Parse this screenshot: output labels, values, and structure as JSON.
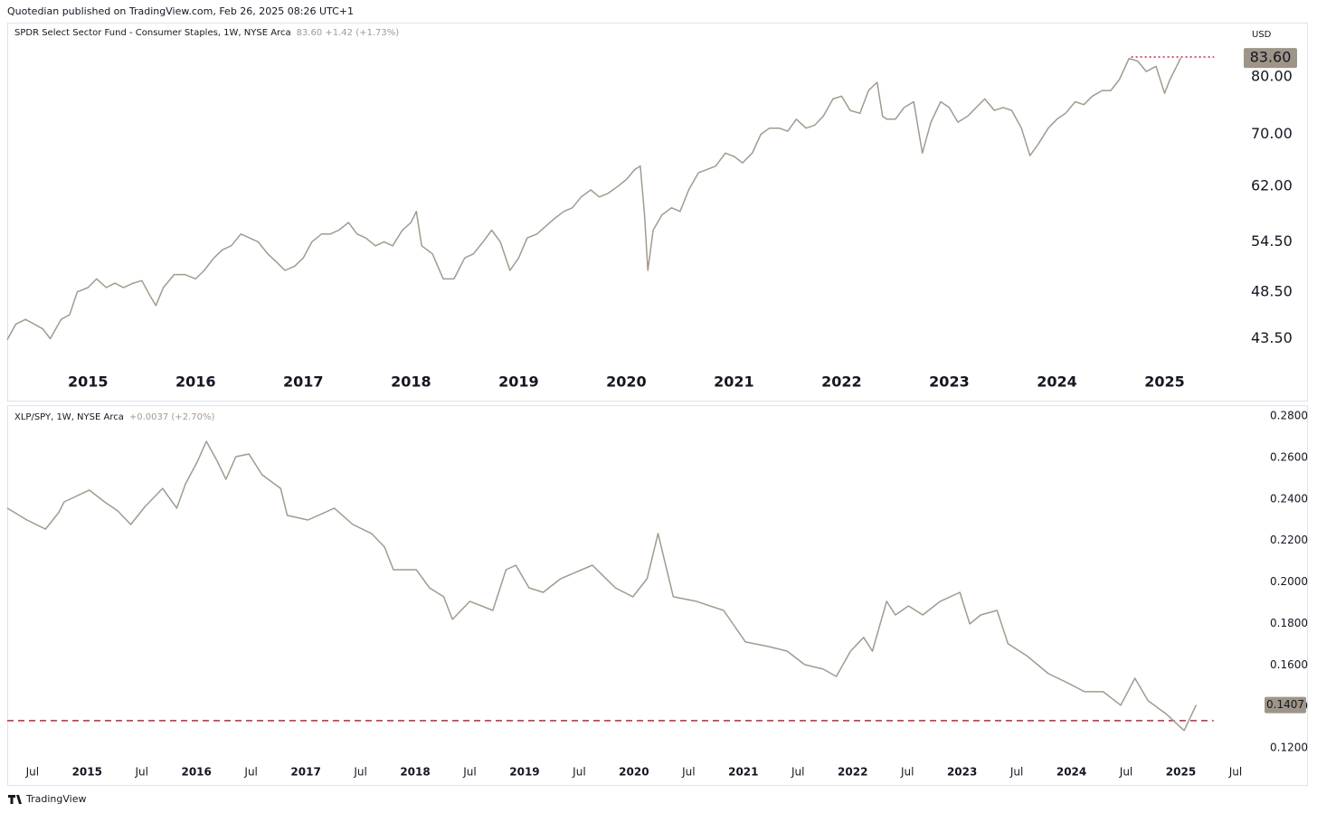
{
  "header": "Quotedian published on TradingView.com, Feb 26, 2025 08:26 UTC+1",
  "footer": "TradingView",
  "chart_data": [
    {
      "type": "line",
      "title": "SPDR Select Sector Fund - Consumer Staples, 1W, NYSE Arca",
      "subtitle": "83.60  +1.42 (+1.73%)",
      "currency": "USD",
      "color": "#a39a8e",
      "log": true,
      "x": [
        2014.25,
        2014.33,
        2014.42,
        2014.5,
        2014.58,
        2014.65,
        2014.75,
        2014.83,
        2014.9,
        2015.0,
        2015.08,
        2015.17,
        2015.25,
        2015.33,
        2015.42,
        2015.5,
        2015.58,
        2015.63,
        2015.7,
        2015.8,
        2015.9,
        2016.0,
        2016.08,
        2016.17,
        2016.25,
        2016.33,
        2016.42,
        2016.5,
        2016.58,
        2016.67,
        2016.75,
        2016.83,
        2016.92,
        2017.0,
        2017.08,
        2017.17,
        2017.25,
        2017.33,
        2017.42,
        2017.5,
        2017.58,
        2017.67,
        2017.75,
        2017.83,
        2017.92,
        2018.0,
        2018.05,
        2018.1,
        2018.2,
        2018.3,
        2018.4,
        2018.5,
        2018.58,
        2018.67,
        2018.75,
        2018.83,
        2018.92,
        2019.0,
        2019.08,
        2019.17,
        2019.25,
        2019.33,
        2019.42,
        2019.5,
        2019.58,
        2019.67,
        2019.75,
        2019.83,
        2019.92,
        2020.0,
        2020.08,
        2020.13,
        2020.17,
        2020.2,
        2020.25,
        2020.33,
        2020.42,
        2020.5,
        2020.58,
        2020.67,
        2020.75,
        2020.83,
        2020.92,
        2021.0,
        2021.08,
        2021.17,
        2021.25,
        2021.33,
        2021.42,
        2021.5,
        2021.58,
        2021.67,
        2021.75,
        2021.83,
        2021.92,
        2022.0,
        2022.08,
        2022.17,
        2022.25,
        2022.33,
        2022.38,
        2022.42,
        2022.5,
        2022.58,
        2022.67,
        2022.75,
        2022.83,
        2022.92,
        2023.0,
        2023.08,
        2023.17,
        2023.25,
        2023.33,
        2023.42,
        2023.5,
        2023.58,
        2023.67,
        2023.75,
        2023.83,
        2023.92,
        2024.0,
        2024.08,
        2024.17,
        2024.25,
        2024.33,
        2024.42,
        2024.5,
        2024.58,
        2024.67,
        2024.75,
        2024.83,
        2024.92,
        2025.0,
        2025.05,
        2025.1,
        2025.15
      ],
      "values": [
        43.4,
        45.0,
        45.5,
        45.0,
        44.5,
        43.5,
        45.5,
        46.0,
        48.5,
        49.0,
        50.0,
        49.0,
        49.5,
        49.0,
        49.5,
        49.8,
        48.0,
        47.0,
        49.0,
        50.5,
        50.5,
        50.0,
        51.0,
        52.5,
        53.5,
        54.0,
        55.5,
        55.0,
        54.5,
        53.0,
        52.0,
        51.0,
        51.5,
        52.5,
        54.5,
        55.5,
        55.5,
        56.0,
        57.0,
        55.5,
        55.0,
        54.0,
        54.5,
        54.0,
        56.0,
        57.0,
        58.5,
        54.0,
        53.0,
        50.0,
        50.0,
        52.5,
        53.0,
        54.5,
        56.0,
        54.5,
        51.0,
        52.5,
        55.0,
        55.5,
        56.5,
        57.5,
        58.5,
        59.0,
        60.5,
        61.5,
        60.5,
        61.0,
        62.0,
        63.0,
        64.5,
        65.0,
        58.0,
        51.0,
        56.0,
        58.0,
        59.0,
        58.5,
        61.5,
        64.0,
        64.5,
        65.0,
        67.0,
        66.5,
        65.5,
        67.0,
        70.0,
        71.0,
        71.0,
        70.5,
        72.5,
        71.0,
        71.5,
        73.0,
        76.0,
        76.5,
        74.0,
        73.5,
        77.5,
        79.0,
        73.0,
        72.5,
        72.5,
        74.5,
        75.5,
        67.0,
        72.0,
        75.5,
        74.5,
        72.0,
        73.0,
        74.5,
        76.0,
        74.0,
        74.5,
        74.0,
        71.0,
        66.6,
        68.5,
        71.0,
        72.5,
        73.5,
        75.5,
        75.0,
        76.5,
        77.5,
        77.5,
        79.5,
        83.5,
        83.0,
        81.0,
        82.0,
        77.0,
        79.5,
        81.5,
        83.6
      ],
      "last_value": 83.6,
      "last_value_label": "83.60",
      "reference_line": {
        "value": 83.8,
        "x": [
          2024.69,
          2025.46
        ],
        "color": "#c0253a"
      },
      "xlim": [
        2014.25,
        2025.71
      ],
      "xticks": [
        2015,
        2016,
        2017,
        2018,
        2019,
        2020,
        2021,
        2022,
        2023,
        2024,
        2025
      ],
      "ylim": [
        40.8,
        90.2
      ],
      "yticks": [
        {
          "value": 43.5,
          "label": "43.50"
        },
        {
          "value": 48.5,
          "label": "48.50"
        },
        {
          "value": 54.5,
          "label": "54.50"
        },
        {
          "value": 62,
          "label": "62.00"
        },
        {
          "value": 70,
          "label": "70.00"
        },
        {
          "value": 80,
          "label": "80.00"
        }
      ]
    },
    {
      "type": "line",
      "title": "XLP/SPY, 1W, NYSE Arca",
      "subtitle": "+0.0037 (+2.70%)",
      "color": "#a39a8e",
      "log": false,
      "x": [
        2014.27,
        2014.45,
        2014.62,
        2014.74,
        2014.79,
        2015.02,
        2015.16,
        2015.28,
        2015.4,
        2015.53,
        2015.69,
        2015.82,
        2015.9,
        2016.01,
        2016.09,
        2016.19,
        2016.27,
        2016.36,
        2016.48,
        2016.6,
        2016.77,
        2016.83,
        2017.02,
        2017.26,
        2017.43,
        2017.6,
        2017.72,
        2017.8,
        2018.01,
        2018.13,
        2018.26,
        2018.34,
        2018.5,
        2018.71,
        2018.83,
        2018.92,
        2019.04,
        2019.17,
        2019.33,
        2019.62,
        2019.83,
        2019.99,
        2020.12,
        2020.22,
        2020.28,
        2020.36,
        2020.57,
        2020.82,
        2021.02,
        2021.23,
        2021.4,
        2021.56,
        2021.73,
        2021.85,
        2021.98,
        2022.1,
        2022.18,
        2022.31,
        2022.39,
        2022.51,
        2022.64,
        2022.8,
        2022.98,
        2023.07,
        2023.17,
        2023.32,
        2023.42,
        2023.59,
        2023.79,
        2023.96,
        2024.12,
        2024.29,
        2024.45,
        2024.58,
        2024.7,
        2024.87,
        2025.03,
        2025.14
      ],
      "values": [
        0.2356,
        0.2299,
        0.2255,
        0.2334,
        0.2386,
        0.2443,
        0.2386,
        0.2343,
        0.2277,
        0.2364,
        0.2451,
        0.2356,
        0.2473,
        0.2582,
        0.2678,
        0.2582,
        0.2495,
        0.2604,
        0.2617,
        0.2517,
        0.2451,
        0.2321,
        0.2299,
        0.2356,
        0.2277,
        0.2234,
        0.2168,
        0.2059,
        0.2059,
        0.1972,
        0.1929,
        0.182,
        0.1907,
        0.1863,
        0.2059,
        0.2081,
        0.1972,
        0.195,
        0.2016,
        0.2081,
        0.1972,
        0.1929,
        0.2016,
        0.2234,
        0.2103,
        0.1929,
        0.1907,
        0.1863,
        0.1711,
        0.1689,
        0.1667,
        0.1602,
        0.158,
        0.1545,
        0.1667,
        0.1733,
        0.1667,
        0.1907,
        0.1841,
        0.1885,
        0.1841,
        0.1907,
        0.195,
        0.1798,
        0.1841,
        0.1863,
        0.1702,
        0.1645,
        0.1558,
        0.1515,
        0.1471,
        0.1471,
        0.1406,
        0.1536,
        0.1428,
        0.1362,
        0.1284,
        0.1407
      ],
      "last_value": 0.1407,
      "last_value_label": "0.1407",
      "reference_line": {
        "value": 0.1332,
        "x": [
          2014.27,
          2025.3
        ],
        "color": "#c0253a"
      },
      "xlim": [
        2014.27,
        2025.55
      ],
      "xticks": [
        {
          "value": 2014.5,
          "label": "Jul"
        },
        2015,
        {
          "value": 2015.5,
          "label": "Jul"
        },
        2016,
        {
          "value": 2016.5,
          "label": "Jul"
        },
        2017,
        {
          "value": 2017.5,
          "label": "Jul"
        },
        2018,
        {
          "value": 2018.5,
          "label": "Jul"
        },
        2019,
        {
          "value": 2019.5,
          "label": "Jul"
        },
        2020,
        {
          "value": 2020.5,
          "label": "Jul"
        },
        2021,
        {
          "value": 2021.5,
          "label": "Jul"
        },
        2022,
        {
          "value": 2022.5,
          "label": "Jul"
        },
        2023,
        {
          "value": 2023.5,
          "label": "Jul"
        },
        2024,
        {
          "value": 2024.5,
          "label": "Jul"
        },
        2025,
        {
          "value": 2025.5,
          "label": "Jul"
        }
      ],
      "ylim": [
        0.1122,
        0.2835
      ],
      "yticks": [
        {
          "value": 0.12,
          "label": "0.1200"
        },
        {
          "value": 0.14,
          "label": "0.1400"
        },
        {
          "value": 0.16,
          "label": "0.1600"
        },
        {
          "value": 0.18,
          "label": "0.1800"
        },
        {
          "value": 0.2,
          "label": "0.2000"
        },
        {
          "value": 0.22,
          "label": "0.2200"
        },
        {
          "value": 0.24,
          "label": "0.2400"
        },
        {
          "value": 0.26,
          "label": "0.2600"
        },
        {
          "value": 0.28,
          "label": "0.2800"
        }
      ]
    }
  ]
}
